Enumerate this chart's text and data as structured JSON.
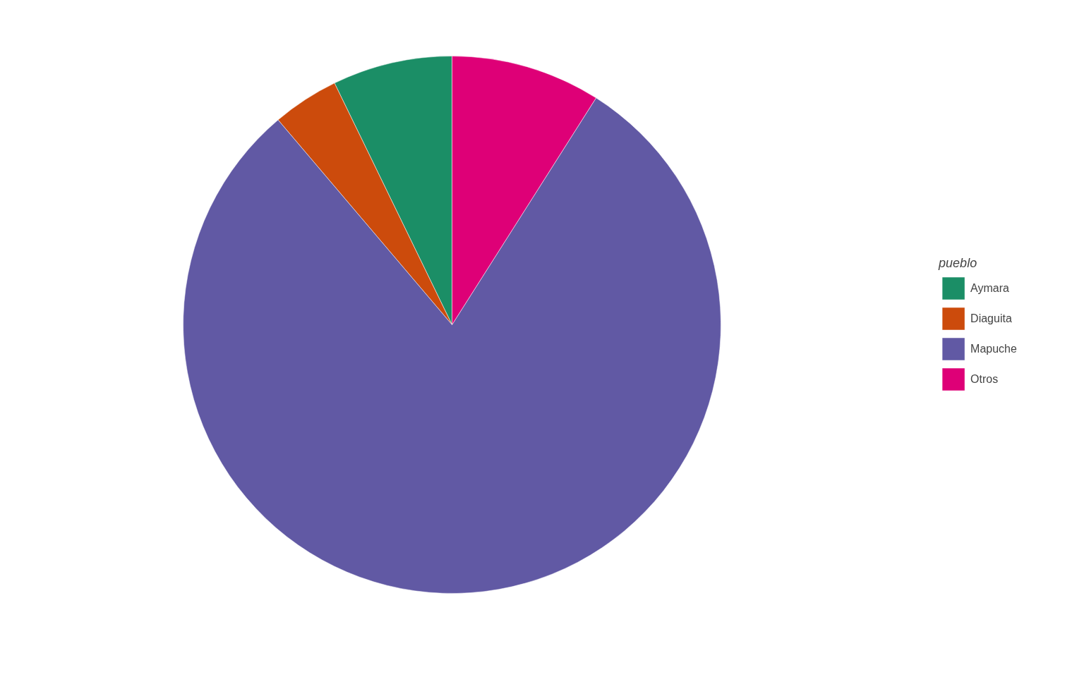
{
  "chart_data": {
    "type": "pie",
    "legend_title": "pueblo",
    "legend": "right",
    "categories": [
      "Aymara",
      "Diaguita",
      "Mapuche",
      "Otros"
    ],
    "values": [
      7.2,
      4.0,
      79.8,
      9.0
    ],
    "colors": [
      "#1b8e66",
      "#cc4b0c",
      "#6159a4",
      "#de0077"
    ]
  }
}
